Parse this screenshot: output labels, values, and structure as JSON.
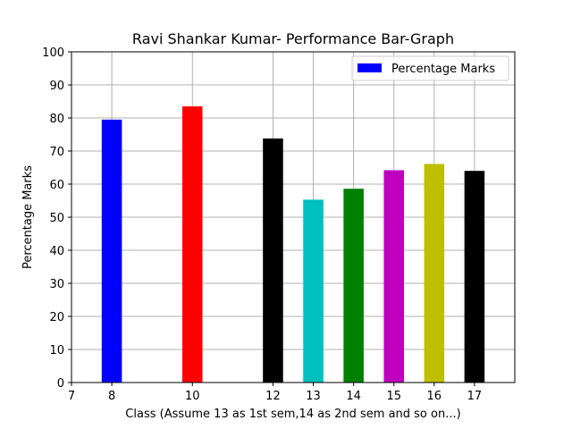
{
  "chart_data": {
    "type": "bar",
    "title": "Ravi Shankar Kumar- Performance Bar-Graph",
    "xlabel": "Class (Assume 13 as 1st sem,14 as 2nd sem and so on...)",
    "ylabel": "Percentage Marks",
    "xlim": [
      7,
      18
    ],
    "ylim": [
      0,
      100
    ],
    "x_ticks": [
      7,
      8,
      10,
      12,
      13,
      14,
      15,
      16,
      17
    ],
    "y_ticks": [
      0,
      10,
      20,
      30,
      40,
      50,
      60,
      70,
      80,
      90,
      100
    ],
    "grid": true,
    "legend": {
      "position": "top-right",
      "entries": [
        {
          "label": "Percentage Marks",
          "color": "#0000ff"
        }
      ]
    },
    "bar_width": 0.5,
    "series": [
      {
        "name": "Percentage Marks",
        "x": [
          8,
          10,
          12,
          13,
          14,
          15,
          16,
          17
        ],
        "values": [
          79.5,
          83.5,
          73.8,
          55.3,
          58.6,
          64.2,
          66.1,
          64.0
        ],
        "colors": [
          "#0000ff",
          "#ff0000",
          "#000000",
          "#00bfbf",
          "#008000",
          "#bf00bf",
          "#bfbf00",
          "#000000"
        ]
      }
    ]
  }
}
